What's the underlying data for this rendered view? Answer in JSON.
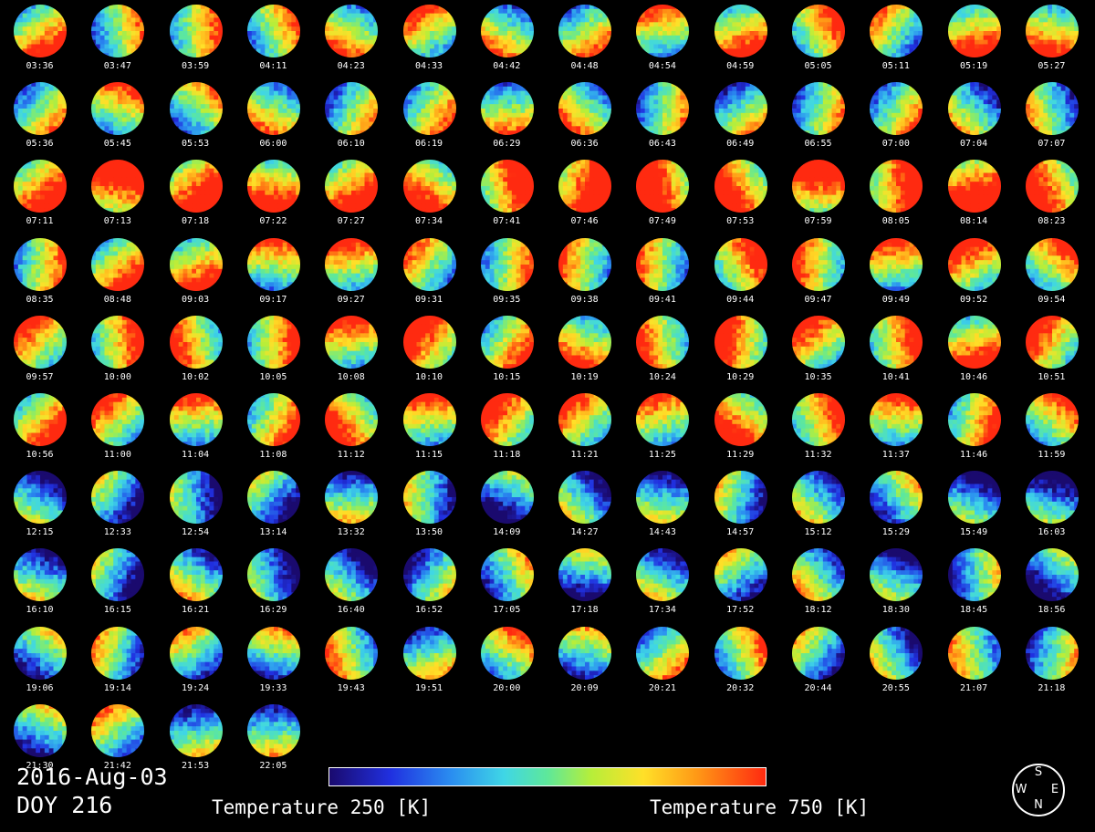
{
  "times": [
    "03:36",
    "03:47",
    "03:59",
    "04:11",
    "04:23",
    "04:33",
    "04:42",
    "04:48",
    "04:54",
    "04:59",
    "05:05",
    "05:11",
    "05:19",
    "05:27",
    "05:36",
    "05:45",
    "05:53",
    "06:00",
    "06:10",
    "06:19",
    "06:29",
    "06:36",
    "06:43",
    "06:49",
    "06:55",
    "07:00",
    "07:04",
    "07:07",
    "07:11",
    "07:13",
    "07:18",
    "07:22",
    "07:27",
    "07:34",
    "07:41",
    "07:46",
    "07:49",
    "07:53",
    "07:59",
    "08:05",
    "08:14",
    "08:23",
    "08:35",
    "08:48",
    "09:03",
    "09:17",
    "09:27",
    "09:31",
    "09:35",
    "09:38",
    "09:41",
    "09:44",
    "09:47",
    "09:49",
    "09:52",
    "09:54",
    "09:57",
    "10:00",
    "10:02",
    "10:05",
    "10:08",
    "10:10",
    "10:15",
    "10:19",
    "10:24",
    "10:29",
    "10:35",
    "10:41",
    "10:46",
    "10:51",
    "10:56",
    "11:00",
    "11:04",
    "11:08",
    "11:12",
    "11:15",
    "11:18",
    "11:21",
    "11:25",
    "11:29",
    "11:32",
    "11:37",
    "11:46",
    "11:59",
    "12:15",
    "12:33",
    "12:54",
    "13:14",
    "13:32",
    "13:50",
    "14:09",
    "14:27",
    "14:43",
    "14:57",
    "15:12",
    "15:29",
    "15:49",
    "16:03",
    "16:10",
    "16:15",
    "16:21",
    "16:29",
    "16:40",
    "16:52",
    "17:05",
    "17:18",
    "17:34",
    "17:52",
    "18:12",
    "18:30",
    "18:45",
    "18:56",
    "19:06",
    "19:14",
    "19:24",
    "19:33",
    "19:43",
    "19:51",
    "20:00",
    "20:09",
    "20:21",
    "20:32",
    "20:44",
    "20:55",
    "21:07",
    "21:18",
    "21:30",
    "21:42",
    "21:53",
    "22:05"
  ],
  "date": "2016-Aug-03",
  "doy": "DOY 216",
  "colorbar": {
    "low_label": "Temperature 250 [K]",
    "high_label": "Temperature 750 [K]",
    "min_k": 250,
    "max_k": 750
  },
  "compass": {
    "top": "S",
    "left": "W",
    "right": "E",
    "bottom": "N"
  },
  "colors": {
    "background": "#000000",
    "text": "#ffffff"
  }
}
